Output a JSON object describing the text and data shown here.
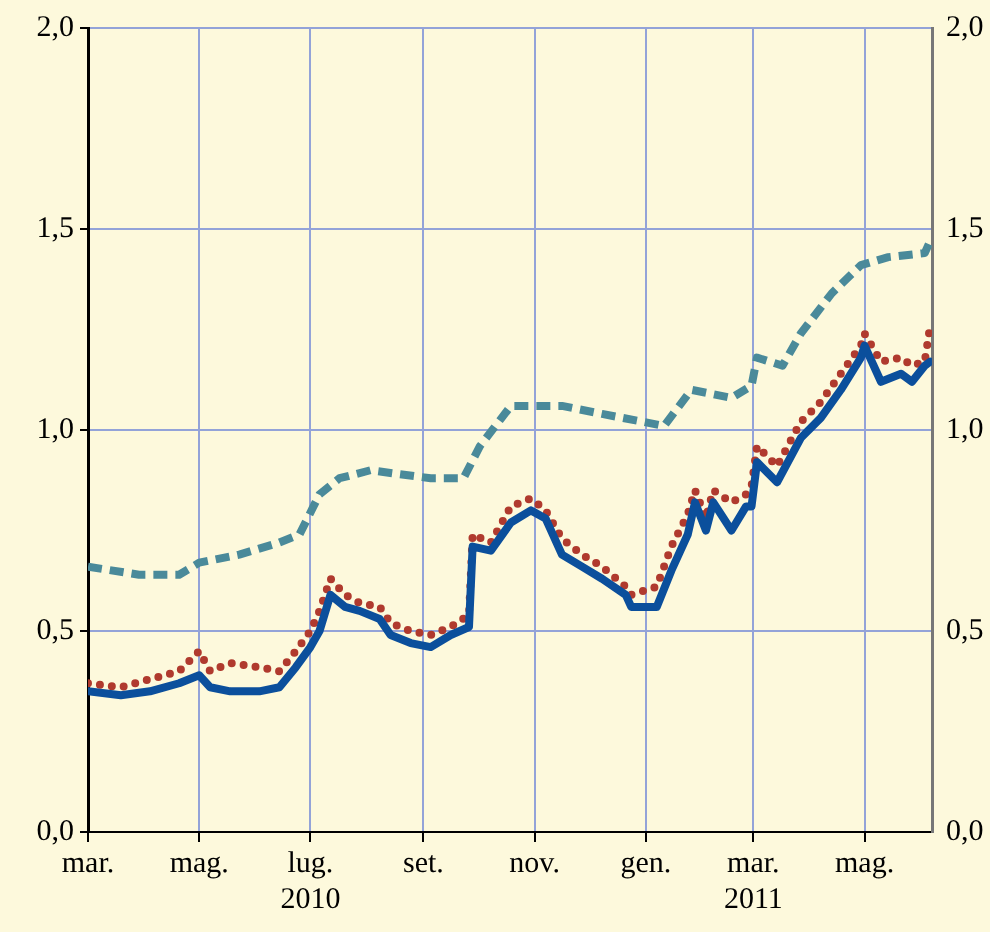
{
  "chart_data": {
    "type": "line",
    "grid": true,
    "legend": false,
    "marker": "none",
    "xlim": [
      "2010-03-01",
      "2011-06-07"
    ],
    "xticks": [
      {
        "value": "2010-03-01",
        "label": "mar."
      },
      {
        "value": "2010-05-01",
        "label": "mag."
      },
      {
        "value": "2010-07-01",
        "label": "lug.\n2010"
      },
      {
        "value": "2010-09-01",
        "label": "set."
      },
      {
        "value": "2010-11-01",
        "label": "nov."
      },
      {
        "value": "2011-01-01",
        "label": "gen."
      },
      {
        "value": "2011-03-01",
        "label": "mar.\n2011"
      },
      {
        "value": "2011-05-01",
        "label": "mag."
      }
    ],
    "ylim": [
      0,
      2
    ],
    "yticks": [
      {
        "value": 0,
        "label": "0,0"
      },
      {
        "value": 0.5,
        "label": "0,5"
      },
      {
        "value": 1,
        "label": "1,0"
      },
      {
        "value": 1.5,
        "label": "1,5"
      },
      {
        "value": 2,
        "label": "2,0"
      }
    ],
    "y2lim": [
      0,
      2
    ],
    "y2ticks": [
      {
        "value": 0,
        "label": "0,0"
      },
      {
        "value": 0.5,
        "label": "0,5"
      },
      {
        "value": 1,
        "label": "1,0"
      },
      {
        "value": 1.5,
        "label": "1,5"
      },
      {
        "value": 2,
        "label": "2,0"
      }
    ],
    "x": [
      "2010-03-01",
      "2010-03-19",
      "2010-04-04",
      "2010-04-20",
      "2010-05-01",
      "2010-05-07",
      "2010-05-18",
      "2010-06-03",
      "2010-06-14",
      "2010-06-23",
      "2010-07-01",
      "2010-07-06",
      "2010-07-12",
      "2010-07-20",
      "2010-07-28",
      "2010-08-08",
      "2010-08-14",
      "2010-08-25",
      "2010-09-05",
      "2010-09-16",
      "2010-09-26",
      "2010-09-28",
      "2010-10-08",
      "2010-10-19",
      "2010-10-30",
      "2010-11-07",
      "2010-11-16",
      "2010-11-27",
      "2010-12-08",
      "2010-12-21",
      "2010-12-24",
      "2011-01-07",
      "2011-01-15",
      "2011-01-24",
      "2011-01-28",
      "2011-02-03",
      "2011-02-07",
      "2011-02-17",
      "2011-02-25",
      "2011-02-28",
      "2011-03-03",
      "2011-03-14",
      "2011-03-27",
      "2011-04-07",
      "2011-04-18",
      "2011-04-29",
      "2011-05-01",
      "2011-05-10",
      "2011-05-21",
      "2011-05-27",
      "2011-06-03",
      "2011-06-06"
    ],
    "series": [
      {
        "color": "#4a8a9a",
        "line_style": "dashed",
        "x": [
          "2010-03-01",
          "2010-03-29",
          "2010-04-20",
          "2010-05-01",
          "2010-05-23",
          "2010-06-14",
          "2010-06-25",
          "2010-07-06",
          "2010-07-17",
          "2010-08-03",
          "2010-08-19",
          "2010-09-05",
          "2010-09-23",
          "2010-10-02",
          "2010-10-19",
          "2010-11-16",
          "2010-12-08",
          "2010-12-31",
          "2011-01-11",
          "2011-01-26",
          "2011-02-17",
          "2011-02-28",
          "2011-03-03",
          "2011-03-17",
          "2011-03-27",
          "2011-04-13",
          "2011-04-29",
          "2011-05-14",
          "2011-06-03",
          "2011-06-07"
        ],
        "values": [
          0.66,
          0.64,
          0.64,
          0.67,
          0.69,
          0.72,
          0.74,
          0.84,
          0.88,
          0.9,
          0.89,
          0.88,
          0.88,
          0.96,
          1.06,
          1.06,
          1.04,
          1.02,
          1.01,
          1.1,
          1.08,
          1.11,
          1.18,
          1.16,
          1.24,
          1.34,
          1.41,
          1.43,
          1.44,
          1.48
        ]
      },
      {
        "color": "#0b4f9c",
        "line_style": "solid",
        "values": [
          0.35,
          0.34,
          0.35,
          0.37,
          0.39,
          0.36,
          0.35,
          0.35,
          0.36,
          0.41,
          0.46,
          0.5,
          0.59,
          0.56,
          0.55,
          0.53,
          0.49,
          0.47,
          0.46,
          0.49,
          0.51,
          0.71,
          0.7,
          0.77,
          0.8,
          0.78,
          0.69,
          0.66,
          0.63,
          0.59,
          0.56,
          0.56,
          0.65,
          0.74,
          0.82,
          0.75,
          0.82,
          0.75,
          0.81,
          0.81,
          0.92,
          0.87,
          0.98,
          1.03,
          1.1,
          1.18,
          1.21,
          1.12,
          1.14,
          1.12,
          1.16,
          1.17
        ]
      },
      {
        "color": "#b03a2e",
        "line_style": "dotted",
        "values": [
          0.37,
          0.36,
          0.38,
          0.4,
          0.45,
          0.4,
          0.42,
          0.41,
          0.4,
          0.45,
          0.5,
          0.55,
          0.63,
          0.59,
          0.57,
          0.56,
          0.52,
          0.5,
          0.49,
          0.51,
          0.54,
          0.74,
          0.72,
          0.81,
          0.83,
          0.8,
          0.73,
          0.69,
          0.66,
          0.61,
          0.59,
          0.61,
          0.71,
          0.79,
          0.85,
          0.78,
          0.85,
          0.82,
          0.84,
          0.86,
          0.96,
          0.91,
          1.02,
          1.07,
          1.14,
          1.21,
          1.24,
          1.17,
          1.18,
          1.16,
          1.17,
          1.26
        ]
      }
    ]
  }
}
